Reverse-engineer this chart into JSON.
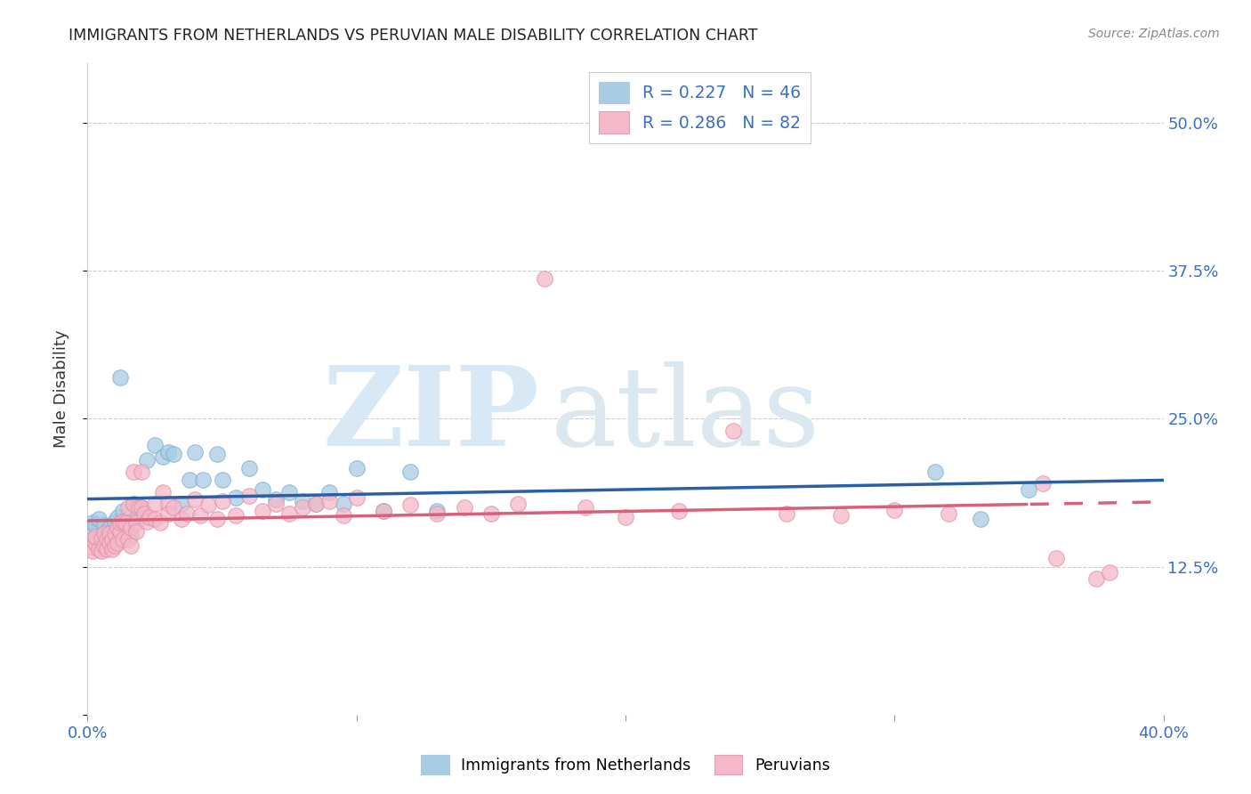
{
  "title": "IMMIGRANTS FROM NETHERLANDS VS PERUVIAN MALE DISABILITY CORRELATION CHART",
  "source": "Source: ZipAtlas.com",
  "ylabel": "Male Disability",
  "xlim": [
    0.0,
    0.4
  ],
  "ylim": [
    0.0,
    0.55
  ],
  "legend_r1": "R = 0.227",
  "legend_n1": "N = 46",
  "legend_r2": "R = 0.286",
  "legend_n2": "N = 82",
  "color_blue": "#a8cce4",
  "color_pink": "#f5b8c8",
  "line_blue": "#2b5fa5",
  "line_pink": "#d9607a",
  "ytick_vals": [
    0.0,
    0.125,
    0.25,
    0.375,
    0.5
  ],
  "ytick_labels": [
    "",
    "12.5%",
    "25.0%",
    "37.5%",
    "50.0%"
  ],
  "xtick_vals": [
    0.0,
    0.1,
    0.2,
    0.3,
    0.4
  ],
  "xtick_labels": [
    "0.0%",
    "",
    "",
    "",
    "40.0%"
  ],
  "nl_x": [
    0.001,
    0.002,
    0.003,
    0.003,
    0.004,
    0.005,
    0.006,
    0.007,
    0.008,
    0.009,
    0.01,
    0.011,
    0.012,
    0.013,
    0.015,
    0.016,
    0.017,
    0.018,
    0.02,
    0.022,
    0.025,
    0.028,
    0.03,
    0.032,
    0.035,
    0.038,
    0.04,
    0.043,
    0.048,
    0.05,
    0.055,
    0.06,
    0.065,
    0.07,
    0.075,
    0.08,
    0.085,
    0.09,
    0.095,
    0.1,
    0.11,
    0.12,
    0.13,
    0.315,
    0.332,
    0.35
  ],
  "nl_y": [
    0.155,
    0.162,
    0.148,
    0.16,
    0.165,
    0.152,
    0.16,
    0.148,
    0.158,
    0.153,
    0.163,
    0.167,
    0.285,
    0.172,
    0.158,
    0.152,
    0.178,
    0.165,
    0.175,
    0.215,
    0.228,
    0.218,
    0.222,
    0.22,
    0.178,
    0.198,
    0.222,
    0.198,
    0.22,
    0.198,
    0.183,
    0.208,
    0.19,
    0.182,
    0.188,
    0.18,
    0.178,
    0.188,
    0.178,
    0.208,
    0.172,
    0.205,
    0.172,
    0.205,
    0.165,
    0.19
  ],
  "peru_x": [
    0.001,
    0.002,
    0.002,
    0.003,
    0.003,
    0.004,
    0.005,
    0.005,
    0.006,
    0.006,
    0.007,
    0.007,
    0.008,
    0.008,
    0.009,
    0.009,
    0.01,
    0.01,
    0.011,
    0.011,
    0.012,
    0.012,
    0.013,
    0.013,
    0.014,
    0.015,
    0.015,
    0.016,
    0.016,
    0.017,
    0.017,
    0.018,
    0.018,
    0.019,
    0.02,
    0.02,
    0.021,
    0.022,
    0.023,
    0.025,
    0.025,
    0.027,
    0.028,
    0.03,
    0.03,
    0.032,
    0.035,
    0.037,
    0.04,
    0.042,
    0.045,
    0.048,
    0.05,
    0.055,
    0.06,
    0.065,
    0.07,
    0.075,
    0.08,
    0.085,
    0.09,
    0.095,
    0.1,
    0.11,
    0.12,
    0.13,
    0.14,
    0.15,
    0.16,
    0.17,
    0.185,
    0.2,
    0.22,
    0.24,
    0.26,
    0.28,
    0.3,
    0.32,
    0.355,
    0.36,
    0.375,
    0.38
  ],
  "peru_y": [
    0.142,
    0.148,
    0.138,
    0.145,
    0.15,
    0.14,
    0.148,
    0.138,
    0.153,
    0.143,
    0.148,
    0.14,
    0.153,
    0.145,
    0.14,
    0.148,
    0.153,
    0.143,
    0.158,
    0.145,
    0.155,
    0.162,
    0.163,
    0.148,
    0.162,
    0.175,
    0.148,
    0.158,
    0.143,
    0.178,
    0.205,
    0.162,
    0.155,
    0.175,
    0.205,
    0.175,
    0.17,
    0.163,
    0.167,
    0.178,
    0.165,
    0.162,
    0.188,
    0.178,
    0.17,
    0.175,
    0.165,
    0.17,
    0.182,
    0.168,
    0.177,
    0.165,
    0.18,
    0.168,
    0.185,
    0.172,
    0.178,
    0.17,
    0.175,
    0.178,
    0.18,
    0.168,
    0.183,
    0.172,
    0.177,
    0.17,
    0.175,
    0.17,
    0.178,
    0.368,
    0.175,
    0.167,
    0.172,
    0.24,
    0.17,
    0.168,
    0.173,
    0.17,
    0.195,
    0.132,
    0.115,
    0.12
  ]
}
